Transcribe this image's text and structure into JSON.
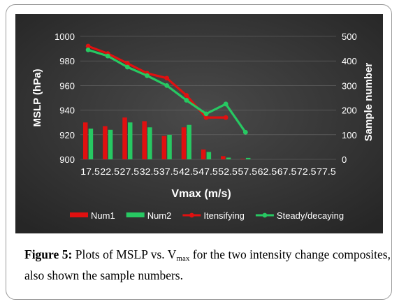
{
  "chart_data": {
    "type": "bar",
    "x_label": "Vmax (m/s)",
    "y_left_label": "MSLP (hPa)",
    "y_right_label": "Sample number",
    "y_left_range": [
      900,
      1000
    ],
    "y_left_ticks": [
      900,
      920,
      940,
      960,
      980,
      1000
    ],
    "y_right_range": [
      0,
      500
    ],
    "y_right_ticks": [
      0,
      100,
      200,
      300,
      400,
      500
    ],
    "categories": [
      "17.5",
      "22.5",
      "27.5",
      "32.5",
      "37.5",
      "42.5",
      "47.5",
      "52.5",
      "57.5",
      "62.5",
      "67.5",
      "72.5",
      "77.5"
    ],
    "series": [
      {
        "name": "Num1",
        "type": "bar",
        "axis": "right",
        "color": "#e01010",
        "values": [
          150,
          135,
          170,
          155,
          95,
          130,
          40,
          13,
          2,
          0,
          0,
          0,
          0
        ]
      },
      {
        "name": "Num2",
        "type": "bar",
        "axis": "right",
        "color": "#27c862",
        "values": [
          125,
          120,
          150,
          130,
          100,
          140,
          30,
          7,
          6,
          0,
          0,
          0,
          0
        ]
      },
      {
        "name": "Itensifying",
        "type": "line",
        "axis": "left",
        "color": "#e01010",
        "values": [
          992,
          986,
          978,
          970,
          966,
          952,
          934,
          934,
          null,
          null,
          null,
          null,
          null
        ]
      },
      {
        "name": "Steady/decaying",
        "type": "line",
        "axis": "left",
        "color": "#27c862",
        "values": [
          989,
          984,
          975,
          968,
          960,
          948,
          937,
          945,
          922,
          null,
          null,
          null,
          null
        ]
      }
    ],
    "legend_position": "bottom"
  },
  "caption": {
    "label": "Figure 5:",
    "text_before": " Plots of MSLP vs. V",
    "subscript": "max",
    "text_after": " for the two intensity change composites, also shown the sample numbers."
  },
  "colors": {
    "background": "#3a3a3a",
    "text": "#ffffff"
  }
}
